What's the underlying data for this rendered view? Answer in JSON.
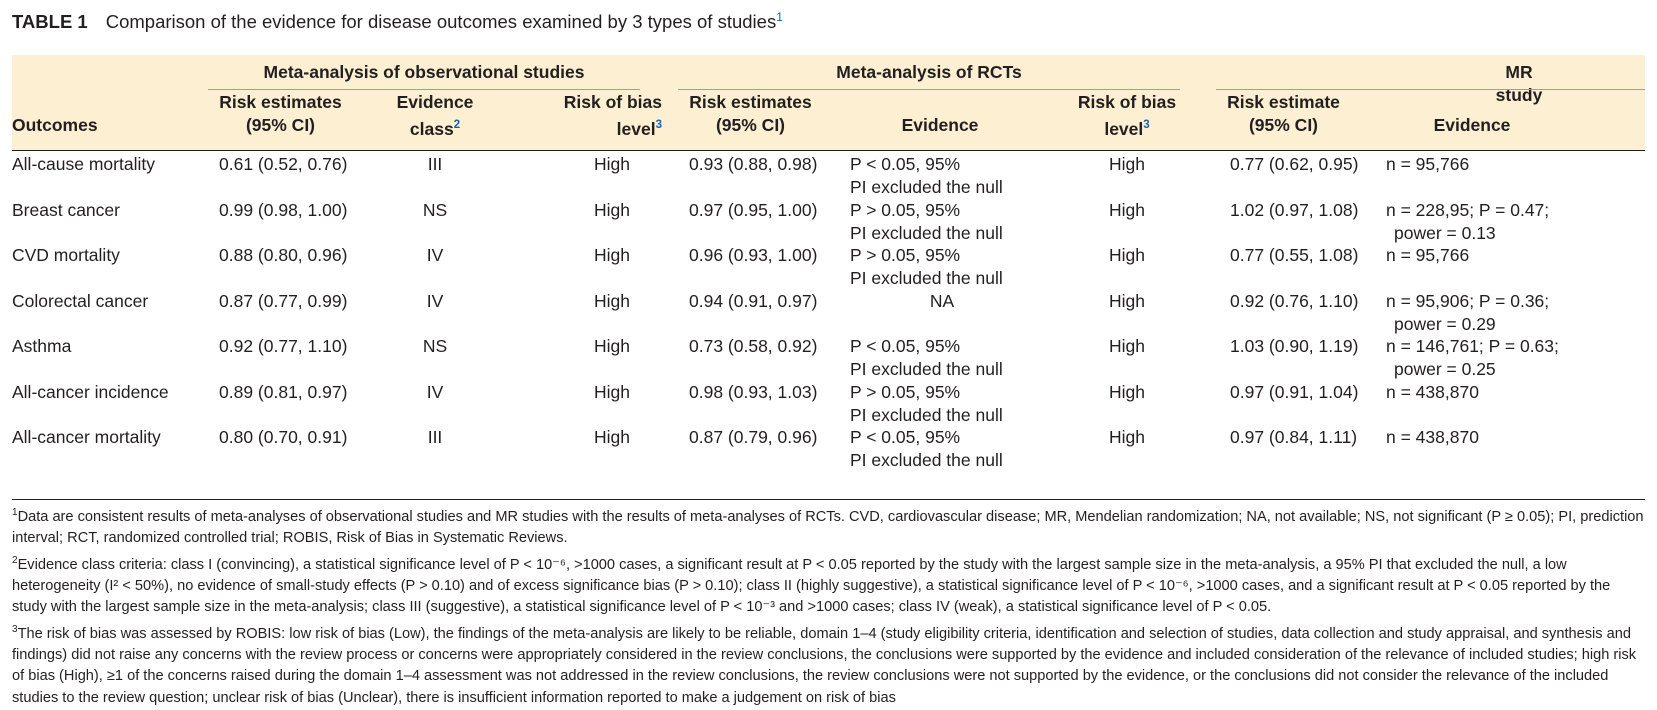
{
  "title": {
    "label": "TABLE 1",
    "text": "Comparison of the evidence for disease outcomes examined by 3 types of studies",
    "note_mark": "1"
  },
  "header": {
    "outcomes": "Outcomes",
    "groups": {
      "obs": "Meta-analysis of observational studies",
      "rct": "Meta-analysis of RCTs",
      "mr": "MR study"
    },
    "obs_risk": [
      "Risk estimates",
      "(95% CI)"
    ],
    "obs_class": [
      "Evidence",
      "class"
    ],
    "obs_class_mark": "2",
    "obs_bias": [
      "Risk of bias",
      "level"
    ],
    "obs_bias_mark": "3",
    "rct_risk": [
      "Risk estimates",
      "(95% CI)"
    ],
    "rct_evidence": "Evidence",
    "rct_bias": [
      "Risk of bias",
      "level"
    ],
    "rct_bias_mark": "3",
    "mr_risk": [
      "Risk estimate",
      "(95% CI)"
    ],
    "mr_evidence": "Evidence"
  },
  "rows": [
    {
      "outcome": "All-cause mortality",
      "obs_risk": "0.61 (0.52, 0.76)",
      "obs_class": "III",
      "obs_bias": "High",
      "rct_risk": "0.93 (0.88, 0.98)",
      "rct_evidence": [
        "P < 0.05, 95%",
        "PI excluded the null"
      ],
      "rct_bias": "High",
      "mr_risk": "0.77 (0.62, 0.95)",
      "mr_evidence": [
        "n = 95,766"
      ]
    },
    {
      "outcome": "Breast cancer",
      "obs_risk": "0.99 (0.98, 1.00)",
      "obs_class": "NS",
      "obs_bias": "High",
      "rct_risk": "0.97 (0.95, 1.00)",
      "rct_evidence": [
        "P > 0.05, 95%",
        "PI excluded the null"
      ],
      "rct_bias": "High",
      "mr_risk": "1.02 (0.97, 1.08)",
      "mr_evidence": [
        "n = 228,95; P = 0.47;",
        "power = 0.13"
      ]
    },
    {
      "outcome": "CVD mortality",
      "obs_risk": "0.88 (0.80, 0.96)",
      "obs_class": "IV",
      "obs_bias": "High",
      "rct_risk": "0.96 (0.93, 1.00)",
      "rct_evidence": [
        "P > 0.05, 95%",
        "PI excluded the null"
      ],
      "rct_bias": "High",
      "mr_risk": "0.77 (0.55, 1.08)",
      "mr_evidence": [
        "n = 95,766"
      ]
    },
    {
      "outcome": "Colorectal cancer",
      "obs_risk": "0.87 (0.77, 0.99)",
      "obs_class": "IV",
      "obs_bias": "High",
      "rct_risk": "0.94 (0.91, 0.97)",
      "rct_evidence": [
        "NA"
      ],
      "rct_bias": "High",
      "mr_risk": "0.92 (0.76, 1.10)",
      "mr_evidence": [
        "n = 95,906; P = 0.36;",
        "power = 0.29"
      ]
    },
    {
      "outcome": "Asthma",
      "obs_risk": "0.92 (0.77, 1.10)",
      "obs_class": "NS",
      "obs_bias": "High",
      "rct_risk": "0.73 (0.58, 0.92)",
      "rct_evidence": [
        "P < 0.05, 95%",
        "PI excluded the null"
      ],
      "rct_bias": "High",
      "mr_risk": "1.03 (0.90, 1.19)",
      "mr_evidence": [
        "n = 146,761; P = 0.63;",
        "power = 0.25"
      ]
    },
    {
      "outcome": "All-cancer incidence",
      "obs_risk": "0.89 (0.81, 0.97)",
      "obs_class": "IV",
      "obs_bias": "High",
      "rct_risk": "0.98 (0.93, 1.03)",
      "rct_evidence": [
        "P > 0.05, 95%",
        "PI excluded the null"
      ],
      "rct_bias": "High",
      "mr_risk": "0.97 (0.91, 1.04)",
      "mr_evidence": [
        "n = 438,870"
      ]
    },
    {
      "outcome": "All-cancer mortality",
      "obs_risk": "0.80 (0.70, 0.91)",
      "obs_class": "III",
      "obs_bias": "High",
      "rct_risk": "0.87 (0.79, 0.96)",
      "rct_evidence": [
        "P < 0.05, 95%",
        "PI excluded the null"
      ],
      "rct_bias": "High",
      "mr_risk": "0.97 (0.84, 1.11)",
      "mr_evidence": [
        "n = 438,870"
      ]
    }
  ],
  "footnotes": [
    {
      "mark": "1",
      "text": "Data are consistent results of meta-analyses of observational studies and MR studies with the results of meta-analyses of RCTs. CVD, cardiovascular disease; MR, Mendelian randomization; NA, not available; NS, not significant (P ≥ 0.05); PI, prediction interval; RCT, randomized controlled trial; ROBIS, Risk of Bias in Systematic Reviews."
    },
    {
      "mark": "2",
      "text": "Evidence class criteria: class I (convincing), a statistical significance level of P < 10⁻⁶, >1000 cases, a significant result at P < 0.05 reported by the study with the largest sample size in the meta-analysis, a 95% PI that excluded the null, a low heterogeneity (I² < 50%), no evidence of small-study effects (P > 0.10) and of excess significance bias (P > 0.10); class II (highly suggestive), a statistical significance level of P < 10⁻⁶, >1000 cases, and a significant result at P < 0.05 reported by the study with the largest sample size in the meta-analysis; class III (suggestive), a statistical significance level of P < 10⁻³ and >1000 cases; class IV (weak), a statistical significance level of P < 0.05."
    },
    {
      "mark": "3",
      "text": "The risk of bias was assessed by ROBIS: low risk of bias (Low), the findings of the meta-analysis are likely to be reliable, domain 1–4 (study eligibility criteria, identification and selection of studies, data collection and study appraisal, and synthesis and findings) did not raise any concerns with the review process or concerns were appropriately considered in the review conclusions, the conclusions were supported by the evidence and included consideration of the relevance of included studies; high risk of bias (High), ≥1 of the concerns raised during the domain 1–4 assessment was not addressed in the review conclusions, the review conclusions were not supported by the evidence, or the conclusions did not consider the relevance of the included studies to the review question; unclear risk of bias (Unclear), there is insufficient information reported to make a judgement on risk of bias"
    }
  ],
  "colors": {
    "header_bg": "#fcefd2",
    "link_blue": "#1a5fb4",
    "text": "#231f20"
  }
}
